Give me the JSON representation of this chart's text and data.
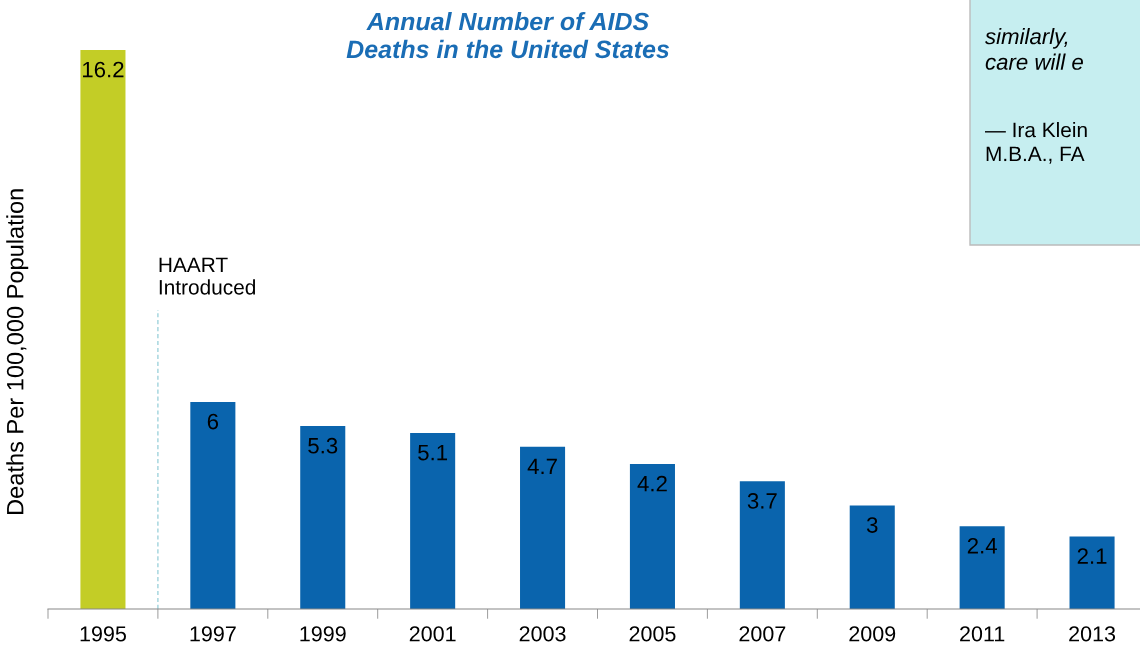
{
  "chart_data": {
    "type": "bar",
    "title": "Annual Number of AIDS\nDeaths in the United States",
    "ylabel": "Deaths Per 100,000 Population",
    "categories": [
      "1995",
      "1997",
      "1999",
      "2001",
      "2003",
      "2005",
      "2007",
      "2009",
      "2011",
      "2013"
    ],
    "values": [
      16.2,
      6,
      5.3,
      5.1,
      4.7,
      4.2,
      3.7,
      3,
      2.4,
      2.1
    ],
    "colors": [
      "#c3cd26",
      "#0a64ad",
      "#0a64ad",
      "#0a64ad",
      "#0a64ad",
      "#0a64ad",
      "#0a64ad",
      "#0a64ad",
      "#0a64ad",
      "#0a64ad"
    ],
    "data_labels": true,
    "grid": false,
    "annotations": [
      "HAART\nIntroduced",
      "similarly,\ncare will e",
      "— Ira Klein\nM.B.A., FA"
    ]
  }
}
